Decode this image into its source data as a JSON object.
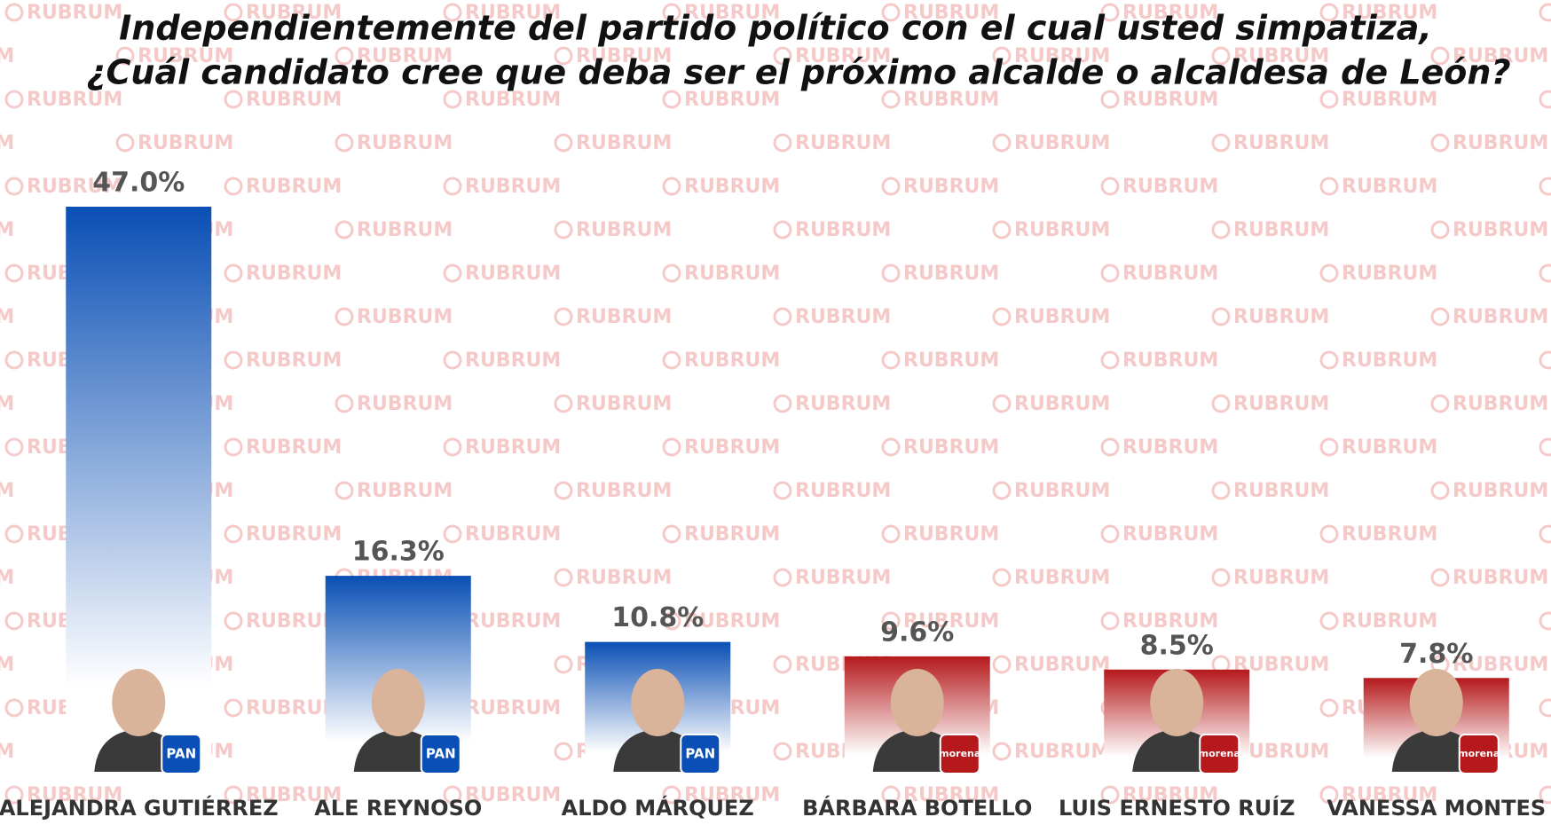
{
  "chart_data": {
    "type": "bar",
    "title": [
      "Independientemente del partido político con el cual usted simpatiza,",
      "¿Cuál candidato cree que deba ser el próximo alcalde o alcaldesa de León?"
    ],
    "categories": [
      "ALEJANDRA GUTIÉRREZ",
      "ALE REYNOSO",
      "ALDO MÁRQUEZ",
      "BÁRBARA BOTELLO",
      "LUIS ERNESTO RUÍZ",
      "VANESSA MONTES"
    ],
    "values": [
      47.0,
      16.3,
      10.8,
      9.6,
      8.5,
      7.8
    ],
    "value_labels": [
      "47.0%",
      "16.3%",
      "10.8%",
      "9.6%",
      "8.5%",
      "7.8%"
    ],
    "colors": [
      "#0a4fb5",
      "#0a4fb5",
      "#0a4fb5",
      "#b5191c",
      "#b5191c",
      "#b5191c"
    ],
    "parties": [
      "PAN",
      "PAN",
      "PAN",
      "morena",
      "morena",
      "morena"
    ],
    "watermark": "RUBRUM"
  }
}
